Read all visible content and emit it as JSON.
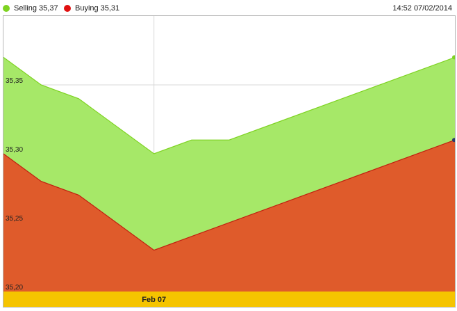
{
  "header": {
    "legend": [
      {
        "label": "Selling",
        "value": "35,37",
        "color": "#7ed321"
      },
      {
        "label": "Buying",
        "value": "35,31",
        "color": "#e01010"
      }
    ],
    "timestamp": "14:52 07/02/2014"
  },
  "chart_data": {
    "type": "area",
    "x": [
      0,
      1,
      2,
      3,
      4,
      5,
      6
    ],
    "x_tick_labels": [
      {
        "at": 4,
        "label": "Feb 07"
      }
    ],
    "xlim": [
      0,
      12
    ],
    "series": [
      {
        "name": "Selling",
        "color": "#a6e868",
        "line_color": "#7ed321",
        "points": [
          [
            0,
            35.37
          ],
          [
            1,
            35.35
          ],
          [
            2,
            35.34
          ],
          [
            4,
            35.3
          ],
          [
            5,
            35.31
          ],
          [
            6,
            35.31
          ],
          [
            12,
            35.37
          ]
        ]
      },
      {
        "name": "Buying",
        "color": "#df5b2b",
        "line_color": "#c0200f",
        "points": [
          [
            0,
            35.3
          ],
          [
            1,
            35.28
          ],
          [
            2,
            35.27
          ],
          [
            4,
            35.23
          ],
          [
            12,
            35.31
          ]
        ]
      }
    ],
    "y_ticks": [
      "35,20",
      "35,25",
      "35,30",
      "35,35"
    ],
    "y_tick_values": [
      35.2,
      35.25,
      35.3,
      35.35
    ],
    "ylim": [
      35.2,
      35.4
    ],
    "grid": true,
    "x_axis_band_color": "#f5c400"
  }
}
